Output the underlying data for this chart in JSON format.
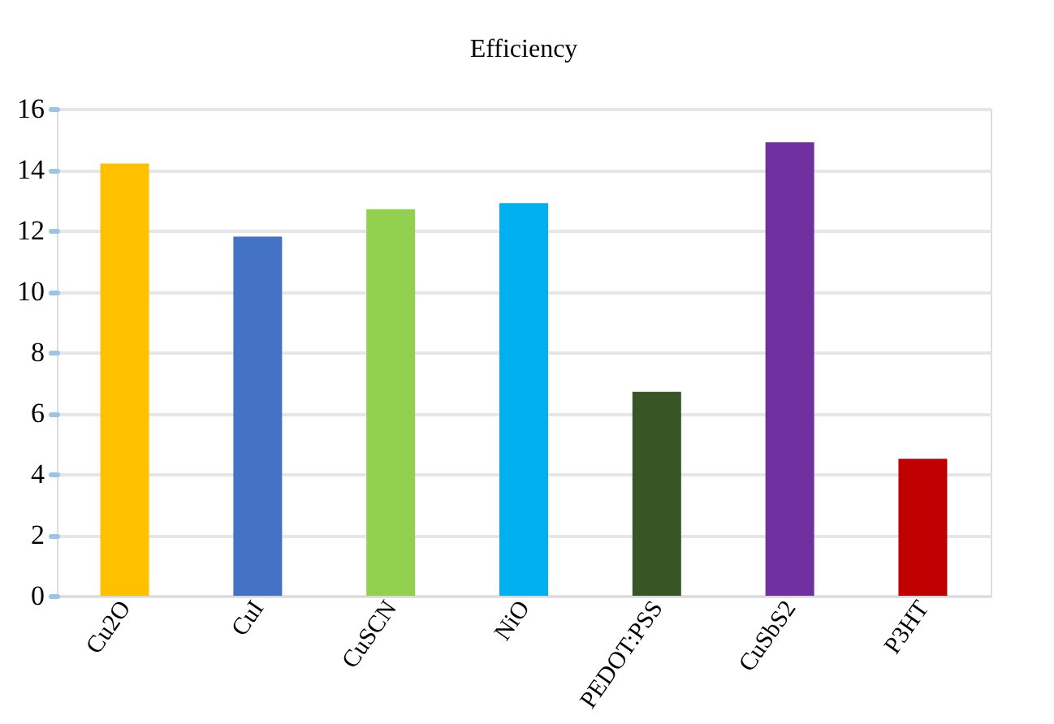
{
  "chart_data": {
    "type": "bar",
    "title": "Efficiency",
    "categories": [
      "Cu2O",
      "CuI",
      "CuSCN",
      "NiO",
      "PEDOT:PSS",
      "CuSbS2",
      "P3HT",
      null
    ],
    "values": [
      14.2,
      11.8,
      12.7,
      12.9,
      6.7,
      14.9,
      4.5,
      null
    ],
    "colors": [
      "#ffc000",
      "#4472c4",
      "#92d050",
      "#00b0f0",
      "#375623",
      "#7030a0",
      "#c00000",
      "#ffffff"
    ],
    "ylim": [
      0,
      16
    ],
    "yticks": [
      0,
      2,
      4,
      6,
      8,
      10,
      12,
      14,
      16
    ],
    "grid": "y",
    "legend": false
  }
}
